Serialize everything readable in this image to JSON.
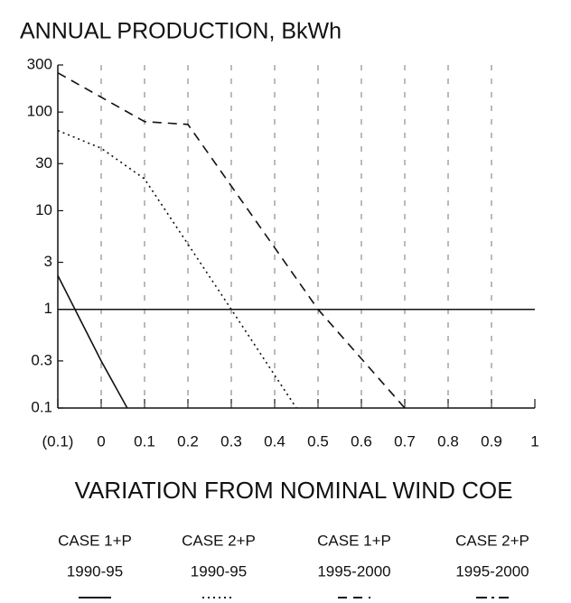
{
  "chart_data": {
    "type": "line",
    "title": "ANNUAL PRODUCTION, BkWh",
    "x_label": "VARIATION FROM NOMINAL WIND COE",
    "xlim": [
      -0.1,
      1
    ],
    "xticks": [
      {
        "value": -0.1,
        "label": "(0.1)"
      },
      0,
      0.1,
      0.2,
      0.3,
      0.4,
      0.5,
      0.6,
      0.7,
      0.8,
      0.9,
      1
    ],
    "ylim": [
      0.1,
      300
    ],
    "yticks": [
      0.1,
      0.3,
      1,
      3,
      10,
      30,
      100,
      300
    ],
    "log_y": true,
    "grid": true,
    "hline": 1,
    "legend": "bottom",
    "series": [
      {
        "name": "CASE 1+P",
        "period": "1990-95",
        "color": "#111111",
        "style": "solid",
        "x": [
          -0.1,
          0,
          0.06
        ],
        "values": [
          2.2,
          0.3,
          0.1
        ]
      },
      {
        "name": "CASE 2+P",
        "period": "1990-95",
        "color": "#111111",
        "style": "dotted",
        "x": [
          -0.1,
          0,
          0.1,
          0.3,
          0.45
        ],
        "values": [
          65,
          43,
          21,
          1,
          0.1
        ]
      },
      {
        "name": "CASE 1+P",
        "period": "1995-2000",
        "color": "#111111",
        "style": "dashed",
        "x": [
          -0.1,
          0.1,
          0.2,
          0.5,
          0.7
        ],
        "values": [
          250,
          80,
          75,
          1,
          0.1
        ]
      },
      {
        "name": "CASE 2+P",
        "period": "1995-2000",
        "color": "#111111",
        "style": "dashdot",
        "x": [],
        "values": []
      }
    ]
  }
}
